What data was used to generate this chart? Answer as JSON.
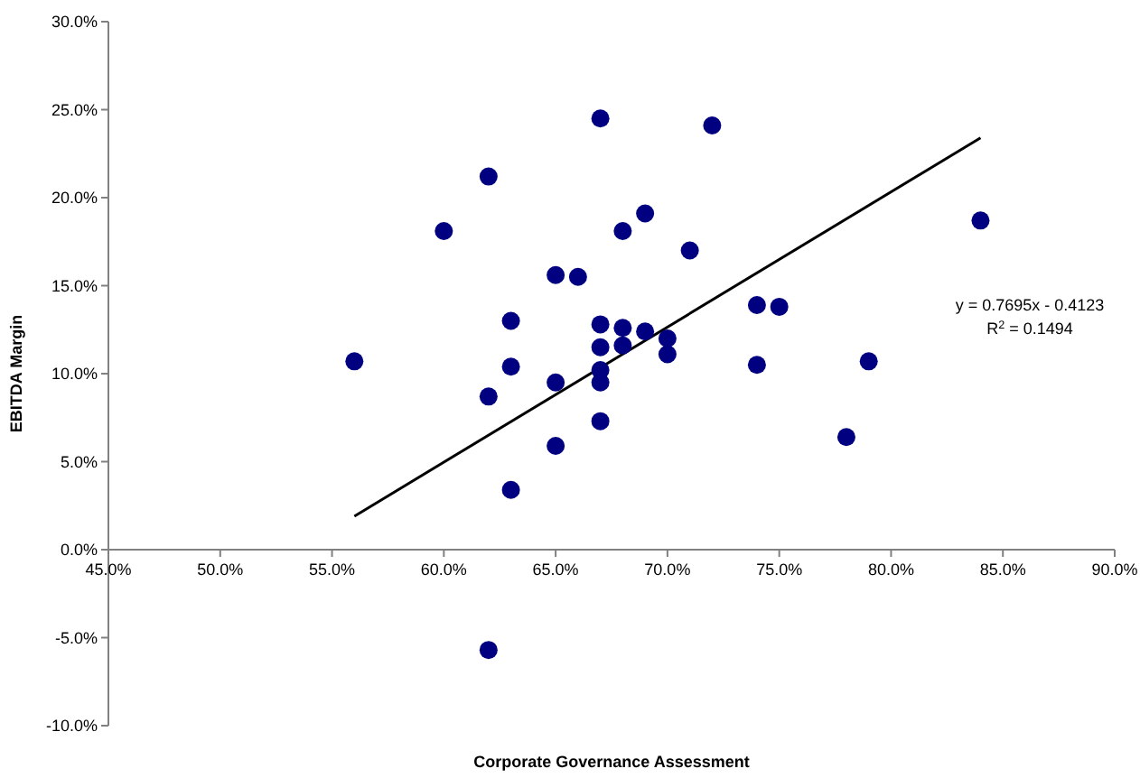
{
  "chart_data": {
    "type": "scatter",
    "xlabel": "Corporate Governance Assessment",
    "ylabel": "EBITDA Margin",
    "annotations": [
      "y = 0.7695x - 0.4123",
      "R$^{2}$ = 0.1494"
    ],
    "xlim": [
      45,
      90
    ],
    "xticks": [
      {
        "value": 45,
        "label": "45.0%"
      },
      {
        "value": 50,
        "label": "50.0%"
      },
      {
        "value": 55,
        "label": "55.0%"
      },
      {
        "value": 60,
        "label": "60.0%"
      },
      {
        "value": 65,
        "label": "65.0%"
      },
      {
        "value": 70,
        "label": "70.0%"
      },
      {
        "value": 75,
        "label": "75.0%"
      },
      {
        "value": 80,
        "label": "80.0%"
      },
      {
        "value": 85,
        "label": "85.0%"
      },
      {
        "value": 90,
        "label": "90.0%"
      }
    ],
    "ylim": [
      -10,
      30
    ],
    "yticks": [
      {
        "value": -10,
        "label": "-10.0%"
      },
      {
        "value": -5,
        "label": "-5.0%"
      },
      {
        "value": 0,
        "label": "0.0%"
      },
      {
        "value": 5,
        "label": "5.0%"
      },
      {
        "value": 10,
        "label": "10.0%"
      },
      {
        "value": 15,
        "label": "15.0%"
      },
      {
        "value": 20,
        "label": "20.0%"
      },
      {
        "value": 25,
        "label": "25.0%"
      },
      {
        "value": 30,
        "label": "30.0%"
      }
    ],
    "marker": "circle",
    "grid": false,
    "legend": false,
    "series": [
      {
        "color": "#000080",
        "x": [
          56,
          60,
          62,
          62,
          62,
          63,
          63,
          63,
          65,
          65,
          65,
          66,
          67,
          67,
          67,
          67,
          67,
          67,
          68,
          68,
          68,
          69,
          69,
          70,
          70,
          71,
          72,
          74,
          74,
          75,
          78,
          79,
          84
        ],
        "values": [
          10.7,
          18.1,
          21.2,
          8.7,
          -5.7,
          13.0,
          10.4,
          3.4,
          15.6,
          9.5,
          5.9,
          15.5,
          24.5,
          12.8,
          11.5,
          10.2,
          9.5,
          7.3,
          18.1,
          12.6,
          11.6,
          19.1,
          12.4,
          12.0,
          11.1,
          17.0,
          24.1,
          13.9,
          10.5,
          13.8,
          6.4,
          10.7,
          18.7
        ]
      },
      {
        "type": "line",
        "marker": "none",
        "color": "#000000",
        "x": [
          56,
          84
        ],
        "values": [
          1.9,
          23.4
        ]
      }
    ]
  }
}
